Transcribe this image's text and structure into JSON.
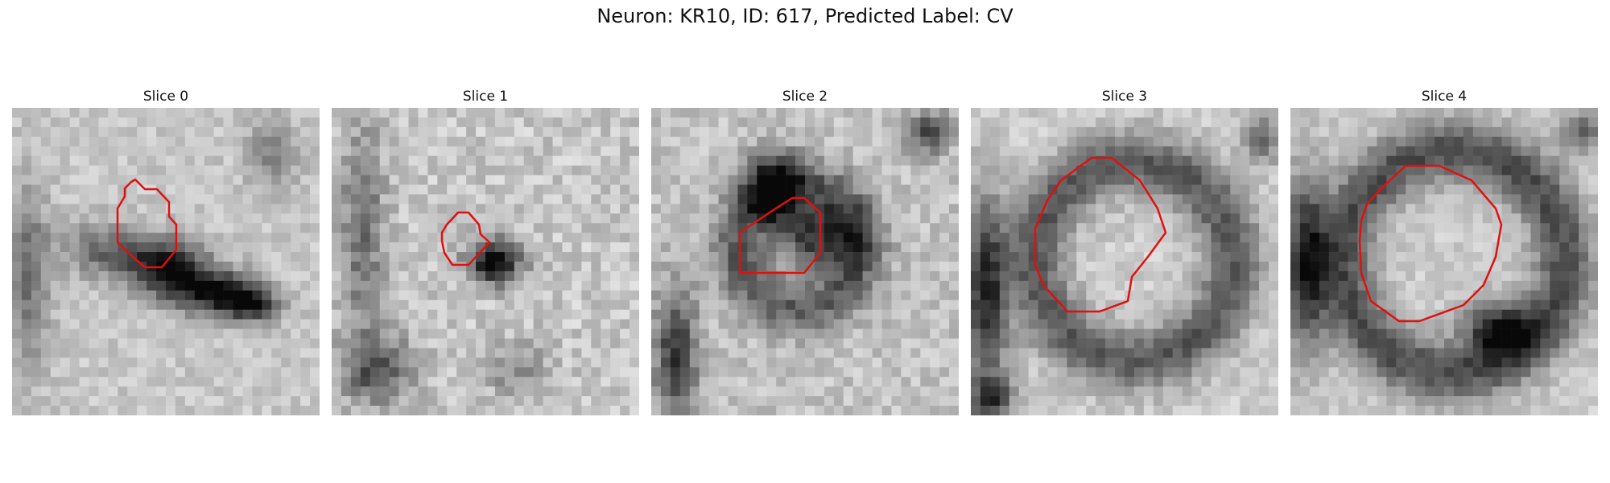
{
  "figure": {
    "title": "Neuron: KR10, ID: 617, Predicted Label: CV",
    "slices": [
      {
        "title": "Slice 0"
      },
      {
        "title": "Slice 1"
      },
      {
        "title": "Slice 2"
      },
      {
        "title": "Slice 3"
      },
      {
        "title": "Slice 4"
      }
    ],
    "outline_color": "#e01010"
  }
}
